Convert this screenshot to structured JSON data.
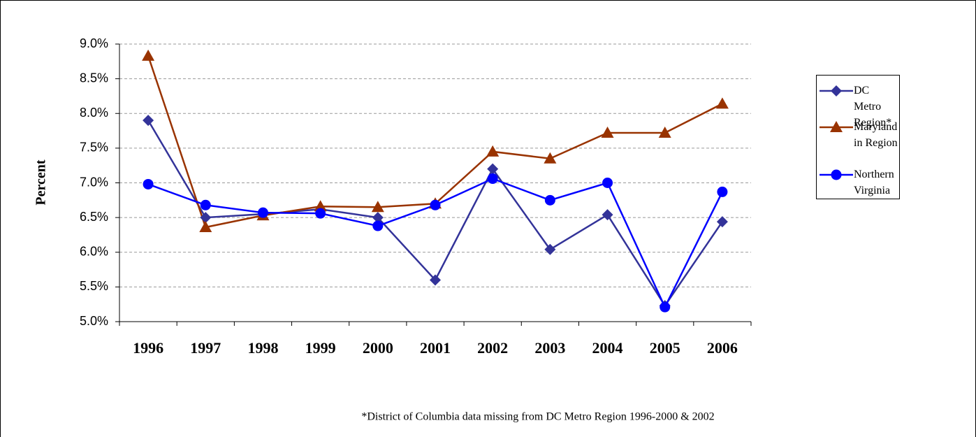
{
  "chart_data": {
    "type": "line",
    "y_label": "Percent",
    "footnote": "*District of Columbia data missing from DC Metro Region 1996-2000 & 2002",
    "categories": [
      "1996",
      "1997",
      "1998",
      "1999",
      "2000",
      "2001",
      "2002",
      "2003",
      "2004",
      "2005",
      "2006"
    ],
    "series": [
      {
        "name": "DC Metro Region*",
        "color": "#333399",
        "marker": "diamond",
        "values": [
          7.9,
          6.5,
          6.55,
          6.62,
          6.5,
          5.6,
          7.2,
          6.04,
          6.54,
          5.23,
          6.44
        ]
      },
      {
        "name": "Maryland in Region",
        "color": "#993300",
        "marker": "triangle",
        "values": [
          8.83,
          6.36,
          6.53,
          6.66,
          6.65,
          6.7,
          7.45,
          7.35,
          7.72,
          7.72,
          8.14
        ]
      },
      {
        "name": "Northern Virginia",
        "color": "#0000ff",
        "marker": "circle",
        "values": [
          6.98,
          6.68,
          6.57,
          6.56,
          6.38,
          6.68,
          7.06,
          6.75,
          7.0,
          5.21,
          6.87
        ]
      }
    ],
    "ylim": [
      5,
      9
    ],
    "yticks": [
      {
        "value": 5,
        "label": "5.0%"
      },
      {
        "value": 5.5,
        "label": "5.5%"
      },
      {
        "value": 6,
        "label": "6.0%"
      },
      {
        "value": 6.5,
        "label": "6.5%"
      },
      {
        "value": 7,
        "label": "7.0%"
      },
      {
        "value": 7.5,
        "label": "7.5%"
      },
      {
        "value": 8,
        "label": "8.0%"
      },
      {
        "value": 8.5,
        "label": "8.5%"
      },
      {
        "value": 9,
        "label": "9.0%"
      }
    ],
    "grid": true,
    "legend": "right"
  }
}
